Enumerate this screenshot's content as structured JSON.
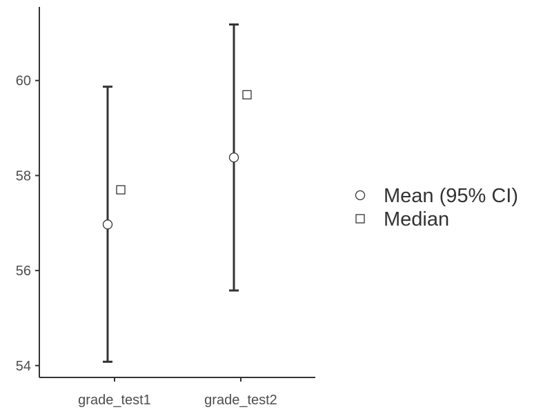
{
  "chart_data": {
    "type": "errorbar",
    "title": "",
    "xlabel": "",
    "ylabel": "",
    "categories": [
      "grade_test1",
      "grade_test2"
    ],
    "ylim": [
      53.75,
      61.55
    ],
    "yticks": [
      54,
      56,
      58,
      60
    ],
    "series": [
      {
        "name": "Mean (95% CI)",
        "marker": "circle",
        "values": [
          56.97,
          58.38
        ],
        "ci_low": [
          54.08,
          55.58
        ],
        "ci_high": [
          59.87,
          61.18
        ]
      },
      {
        "name": "Median",
        "marker": "square",
        "values": [
          57.7,
          59.7
        ]
      }
    ],
    "grid": false,
    "legend": "right",
    "colors": {
      "line": "#333333",
      "marker_fill": "#ffffff",
      "axis": "#333333"
    }
  }
}
